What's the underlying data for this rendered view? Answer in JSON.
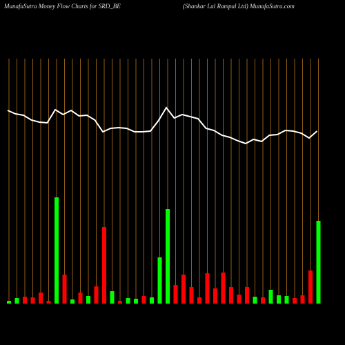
{
  "chart_data": {
    "type": "bar-line",
    "title": "MunafaSutra  Money Flow  Charts for SRD_BE",
    "subtitle": "(Shankar Lal Rampal Ltd) MunafaSutra.com",
    "categories": [
      null,
      null,
      null,
      null,
      null,
      null,
      null,
      null,
      null,
      null,
      null,
      null,
      null,
      null,
      null,
      null,
      null,
      null,
      null,
      null,
      null,
      null,
      null,
      null,
      null,
      null,
      null,
      null,
      null,
      null,
      null,
      null,
      null,
      null,
      null,
      null,
      null,
      null,
      null,
      null
    ],
    "ylim": [
      0,
      355
    ],
    "grid_color": "#b8741a",
    "line_color": "#ffffff",
    "series": [
      {
        "color": "bar-colors",
        "values": [
          4,
          8,
          10,
          9,
          16,
          4,
          154,
          42,
          6,
          16,
          11,
          25,
          111,
          18,
          4,
          8,
          7,
          11,
          9,
          67,
          137,
          27,
          42,
          24,
          9,
          44,
          22,
          45,
          24,
          13,
          24,
          10,
          9,
          20,
          12,
          11,
          8,
          12,
          48,
          120
        ],
        "colors": [
          "#00ff00",
          "#00ff00",
          "#ff0000",
          "#ff0000",
          "#ff0000",
          "#ff0000",
          "#00ff00",
          "#ff0000",
          "#00ff00",
          "#ff0000",
          "#00ff00",
          "#ff0000",
          "#ff0000",
          "#00ff00",
          "#ff0000",
          "#00ff00",
          "#00ff00",
          "#ff0000",
          "#00ff00",
          "#00ff00",
          "#00ff00",
          "#ff0000",
          "#ff0000",
          "#ff0000",
          "#ff0000",
          "#ff0000",
          "#ff0000",
          "#ff0000",
          "#ff0000",
          "#ff0000",
          "#ff0000",
          "#00ff00",
          "#ff0000",
          "#00ff00",
          "#00ff00",
          "#00ff00",
          "#ff0000",
          "#ff0000",
          "#ff0000",
          "#00ff00"
        ]
      },
      {
        "type": "line",
        "values": [
          280,
          275,
          273,
          266,
          263,
          262,
          281,
          274,
          280,
          272,
          273,
          266,
          249,
          254,
          255,
          254,
          249,
          249,
          250,
          265,
          284,
          269,
          274,
          271,
          268,
          254,
          251,
          244,
          241,
          236,
          232,
          238,
          235,
          244,
          245,
          251,
          250,
          247,
          240,
          250
        ]
      }
    ]
  }
}
